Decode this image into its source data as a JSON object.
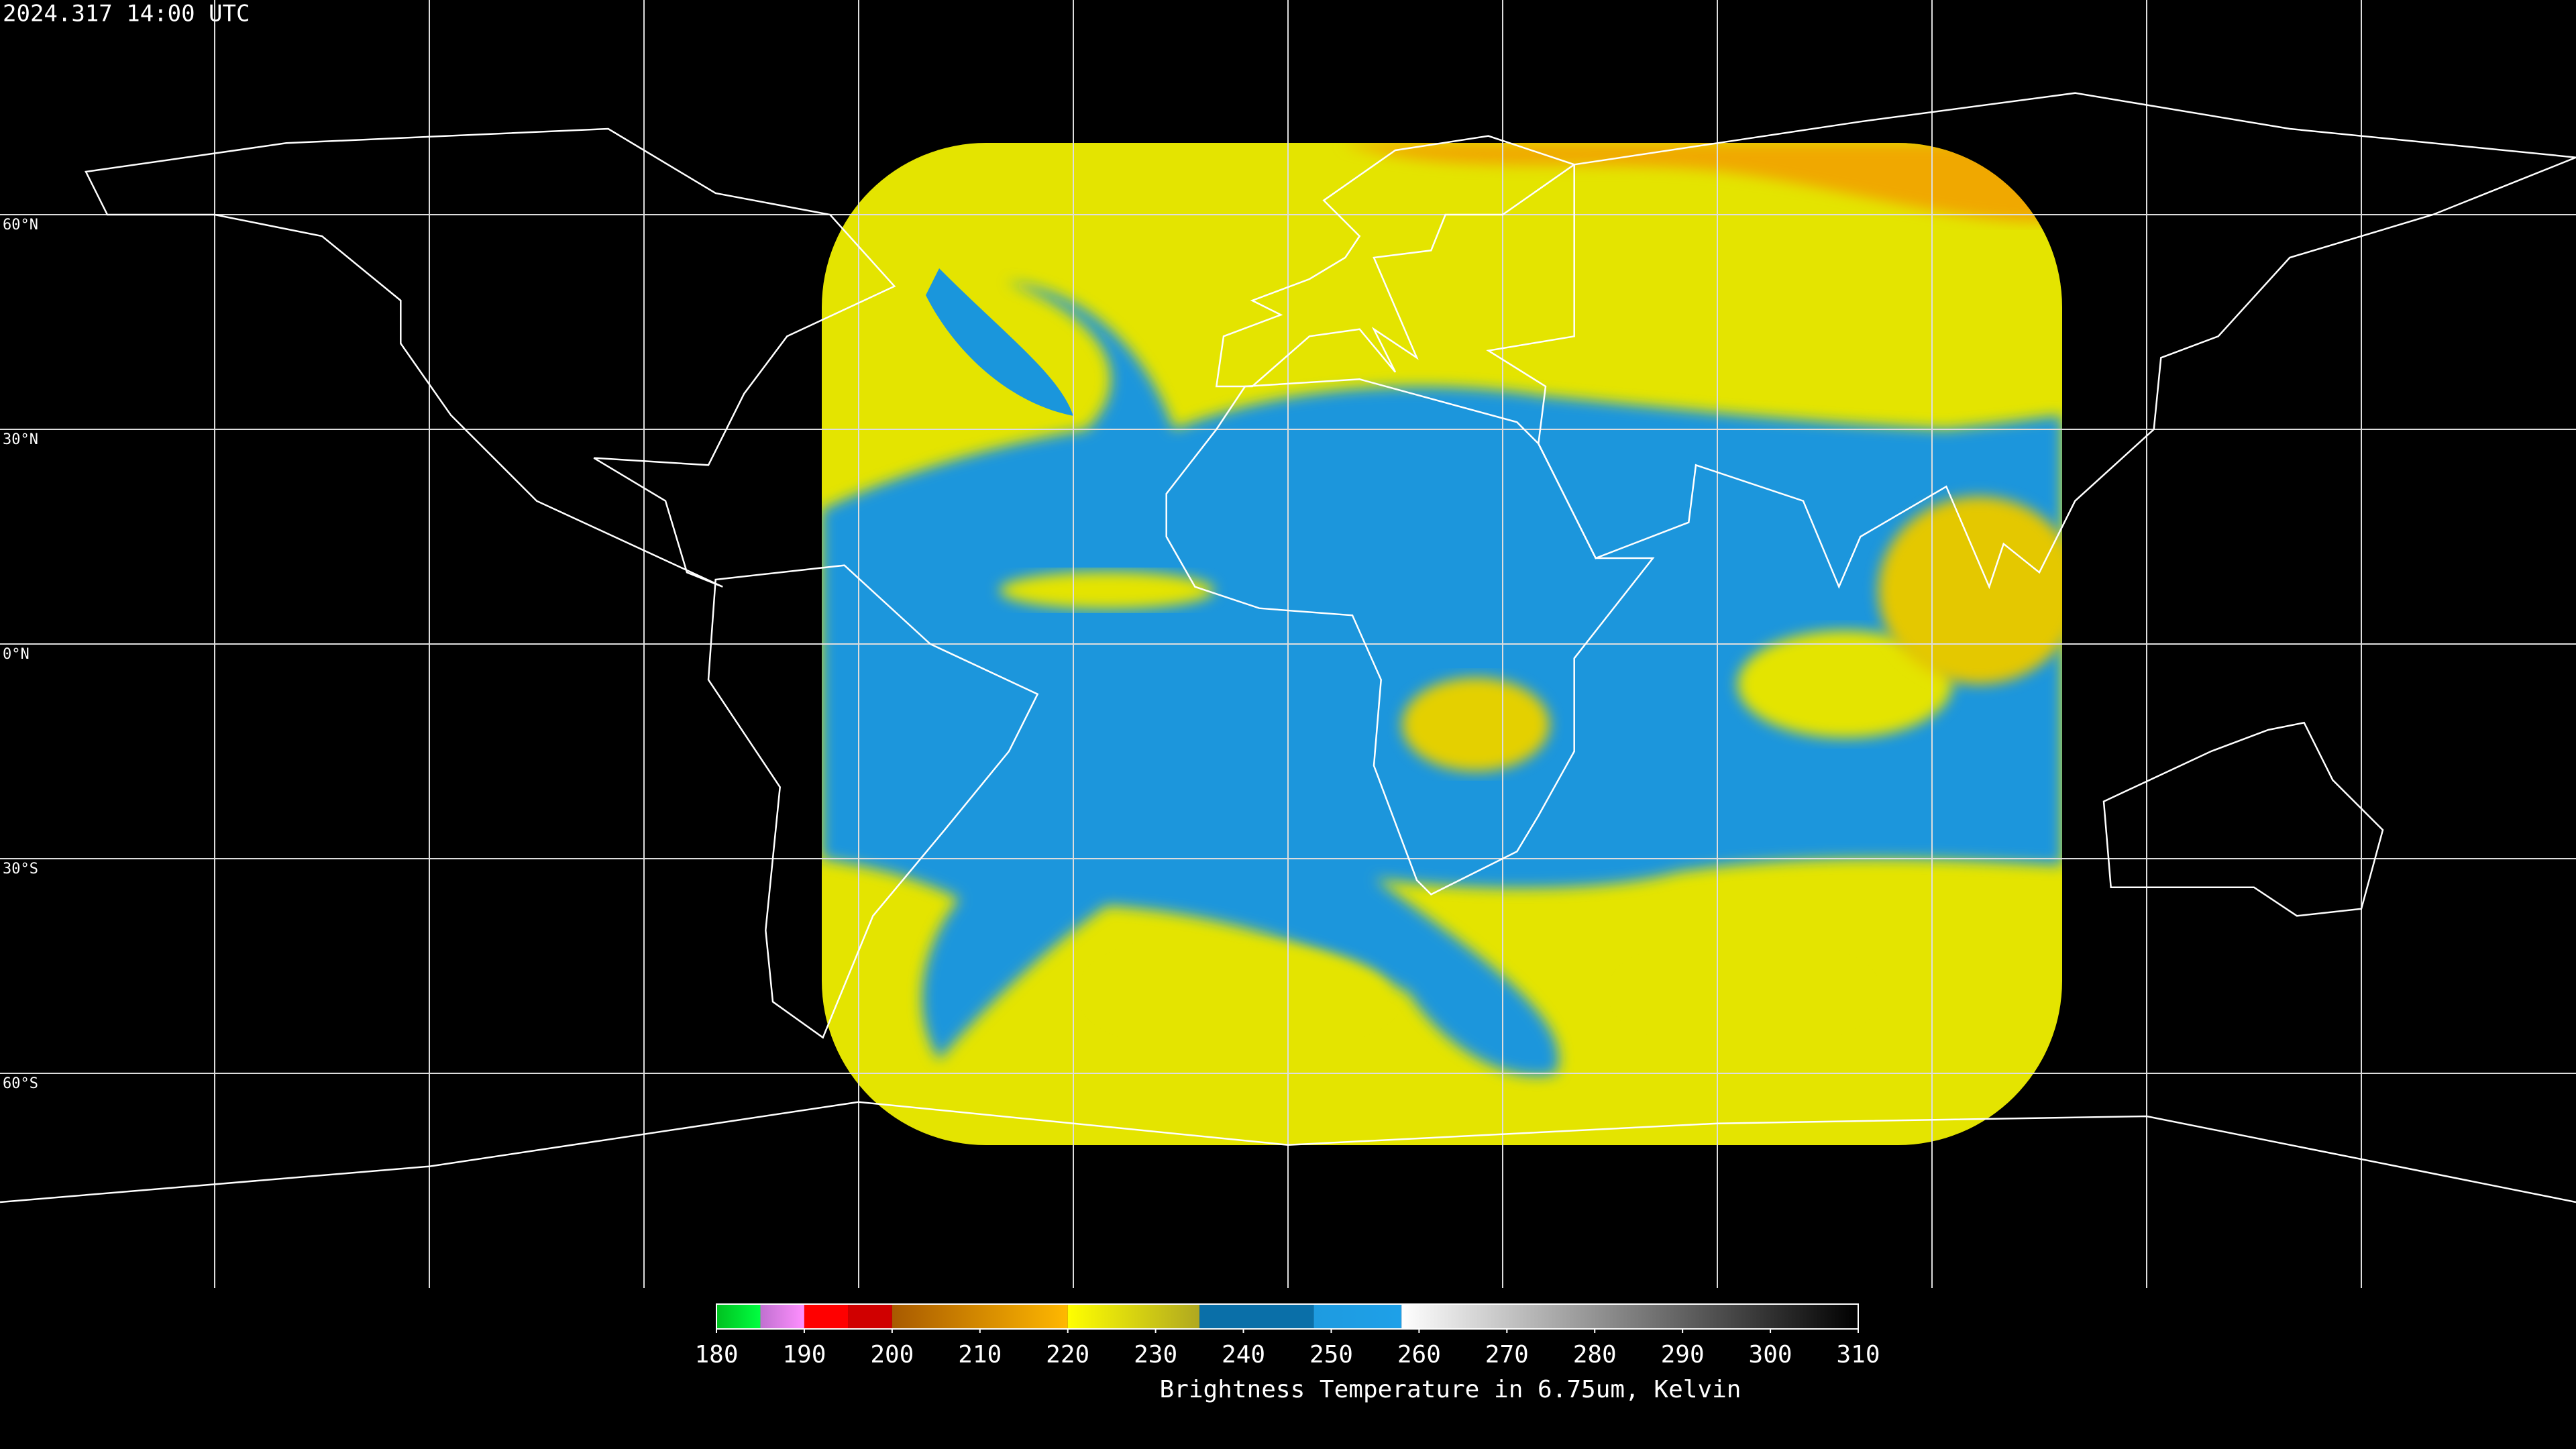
{
  "timestamp": "2024.317 14:00 UTC",
  "lat_lines": [
    {
      "value": 60,
      "label": "60°N"
    },
    {
      "value": 30,
      "label": "30°N"
    },
    {
      "value": 0,
      "label": "0°N"
    },
    {
      "value": -30,
      "label": "30°S"
    },
    {
      "value": -60,
      "label": "60°S"
    }
  ],
  "colorbar": {
    "title": "Brightness Temperature in 6.75um, Kelvin",
    "range": [
      180,
      310
    ],
    "ticks": [
      180,
      190,
      200,
      210,
      220,
      230,
      240,
      250,
      260,
      270,
      280,
      290,
      300,
      310
    ],
    "segments": [
      {
        "range": [
          180,
          185
        ],
        "colors": [
          "#00c020",
          "#00ff40"
        ]
      },
      {
        "range": [
          185,
          190
        ],
        "colors": [
          "#c070d0",
          "#ff90ff"
        ]
      },
      {
        "range": [
          190,
          195
        ],
        "colors": [
          "#ff0000",
          "#ff0000"
        ]
      },
      {
        "range": [
          195,
          200
        ],
        "colors": [
          "#d00000",
          "#d00000"
        ]
      },
      {
        "range": [
          200,
          220
        ],
        "colors": [
          "#a85a00",
          "#ffb800"
        ]
      },
      {
        "range": [
          220,
          235
        ],
        "colors": [
          "#ffff00",
          "#b0a820"
        ]
      },
      {
        "range": [
          235,
          248
        ],
        "colors": [
          "#0a6fa8",
          "#0a6fa8"
        ]
      },
      {
        "range": [
          248,
          258
        ],
        "colors": [
          "#1e9be0",
          "#1ea0e8"
        ]
      },
      {
        "range": [
          258,
          310
        ],
        "colors": [
          "#ffffff",
          "#000000"
        ]
      }
    ]
  }
}
